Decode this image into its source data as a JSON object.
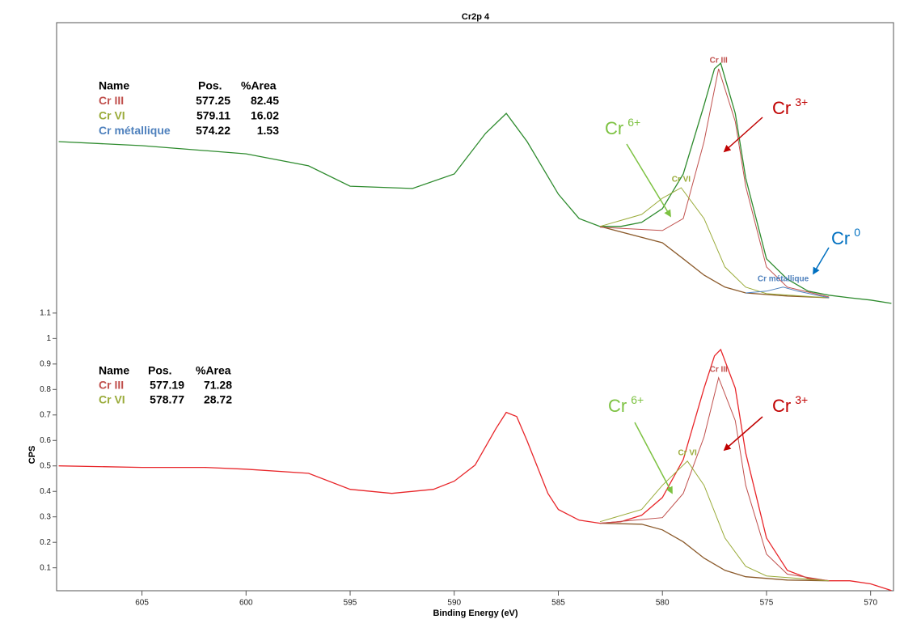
{
  "chart_data": {
    "type": "line",
    "title": "Cr2p 4",
    "x_label": "Binding Energy (eV)",
    "y_label": "CPS",
    "xlim": [
      609.1,
      568.9
    ],
    "ylim": [
      0.01,
      2.24
    ],
    "xticks": [
      605,
      600,
      595,
      590,
      585,
      580,
      575,
      570
    ],
    "yticks": [
      0.1,
      0.2,
      0.3,
      0.4,
      0.5,
      0.6,
      0.7,
      0.8,
      0.9,
      1,
      1.1
    ],
    "panels": [
      {
        "table": {
          "header": [
            "Name",
            "Pos.",
            "%Area"
          ],
          "rows": [
            {
              "color": "#c0504d",
              "cells": [
                "Cr III",
                "577.25",
                "82.45"
              ]
            },
            {
              "color": "#9aab3a",
              "cells": [
                "Cr VI",
                "579.11",
                "16.02"
              ]
            },
            {
              "color": "#4f81bd",
              "cells": [
                "Cr métallique",
                "574.22",
                "1.53"
              ]
            }
          ]
        },
        "series": [
          {
            "color": "#2e8b2e",
            "x": [
              609,
              605,
              600,
              597,
              595,
              592,
              590,
              588.5,
              587.5,
              586.5,
              585,
              584,
              583,
              582,
              581,
              580,
              579,
              578,
              577.5,
              577.2,
              576.5,
              576,
              575,
              574,
              573,
              572,
              571,
              570,
              569
            ],
            "values": [
              1.773,
              1.757,
              1.725,
              1.678,
              1.598,
              1.589,
              1.646,
              1.805,
              1.884,
              1.773,
              1.567,
              1.471,
              1.44,
              1.44,
              1.456,
              1.51,
              1.646,
              1.916,
              2.059,
              2.081,
              1.884,
              1.63,
              1.313,
              1.233,
              1.186,
              1.17,
              1.16,
              1.151,
              1.138
            ]
          },
          {
            "color": "#8b5a2b",
            "x": [
              583,
              580,
              579,
              578,
              577,
              576,
              574,
              572
            ],
            "values": [
              1.44,
              1.376,
              1.313,
              1.249,
              1.202,
              1.179,
              1.167,
              1.16
            ]
          },
          {
            "name": "Cr III",
            "color": "#c0504d",
            "x": [
              583,
              580,
              579,
              578,
              577.3,
              576.5,
              576,
              575,
              574,
              572
            ],
            "values": [
              1.437,
              1.424,
              1.471,
              1.773,
              2.059,
              1.852,
              1.598,
              1.281,
              1.202,
              1.163
            ]
          },
          {
            "name": "Cr VI",
            "color": "#9aab3a",
            "x": [
              583,
              581,
              580,
              579.1,
              578,
              577,
              576,
              575,
              572
            ],
            "values": [
              1.44,
              1.487,
              1.551,
              1.592,
              1.471,
              1.281,
              1.202,
              1.176,
              1.16
            ]
          },
          {
            "name": "Cr métallique",
            "color": "#4f81bd",
            "x": [
              576,
              575,
              574.2,
              573.5,
              572
            ],
            "values": [
              1.179,
              1.186,
              1.202,
              1.186,
              1.16
            ]
          }
        ],
        "annotations": [
          {
            "base": "Cr",
            "sup": "6+",
            "color": "#7dc242"
          },
          {
            "base": "Cr",
            "sup": "3+",
            "color": "#c00000"
          },
          {
            "base": "Cr",
            "sup": "0",
            "color": "#0070c0"
          }
        ]
      },
      {
        "table": {
          "header": [
            "Name",
            "Pos.",
            "%Area"
          ],
          "rows": [
            {
              "color": "#c0504d",
              "cells": [
                "Cr III",
                "577.19",
                "71.28"
              ]
            },
            {
              "color": "#9aab3a",
              "cells": [
                "Cr VI",
                "578.77",
                "28.72"
              ]
            }
          ]
        },
        "series": [
          {
            "color": "#e8262a",
            "x": [
              609,
              605,
              602,
              600,
              597,
              595,
              593,
              591,
              590,
              589,
              588,
              587.5,
              587,
              586.5,
              585.5,
              585,
              584,
              583,
              582,
              581,
              580,
              579,
              578,
              577.5,
              577.2,
              576.5,
              576,
              575,
              574,
              573,
              572,
              571,
              570,
              569
            ],
            "values": [
              0.5,
              0.494,
              0.494,
              0.487,
              0.471,
              0.408,
              0.392,
              0.408,
              0.44,
              0.503,
              0.646,
              0.71,
              0.694,
              0.598,
              0.392,
              0.329,
              0.287,
              0.275,
              0.281,
              0.306,
              0.376,
              0.525,
              0.805,
              0.932,
              0.957,
              0.805,
              0.551,
              0.217,
              0.09,
              0.059,
              0.049,
              0.049,
              0.037,
              0.011
            ]
          },
          {
            "color": "#8b5a2b",
            "x": [
              583,
              581,
              580,
              579,
              578,
              577,
              576,
              574,
              572
            ],
            "values": [
              0.275,
              0.271,
              0.249,
              0.202,
              0.138,
              0.09,
              0.065,
              0.052,
              0.049
            ]
          },
          {
            "name": "Cr III",
            "color": "#c0504d",
            "x": [
              583,
              580,
              579,
              578,
              577.3,
              576.5,
              576,
              575,
              574,
              572
            ],
            "values": [
              0.275,
              0.297,
              0.392,
              0.614,
              0.846,
              0.678,
              0.424,
              0.154,
              0.075,
              0.049
            ]
          },
          {
            "name": "Cr VI",
            "color": "#9aab3a",
            "x": [
              583,
              581,
              580,
              578.8,
              578,
              577,
              576,
              575,
              572
            ],
            "values": [
              0.281,
              0.329,
              0.424,
              0.519,
              0.424,
              0.217,
              0.106,
              0.068,
              0.049
            ]
          }
        ],
        "annotations": [
          {
            "base": "Cr",
            "sup": "6+",
            "color": "#7dc242"
          },
          {
            "base": "Cr",
            "sup": "3+",
            "color": "#c00000"
          }
        ]
      }
    ]
  }
}
